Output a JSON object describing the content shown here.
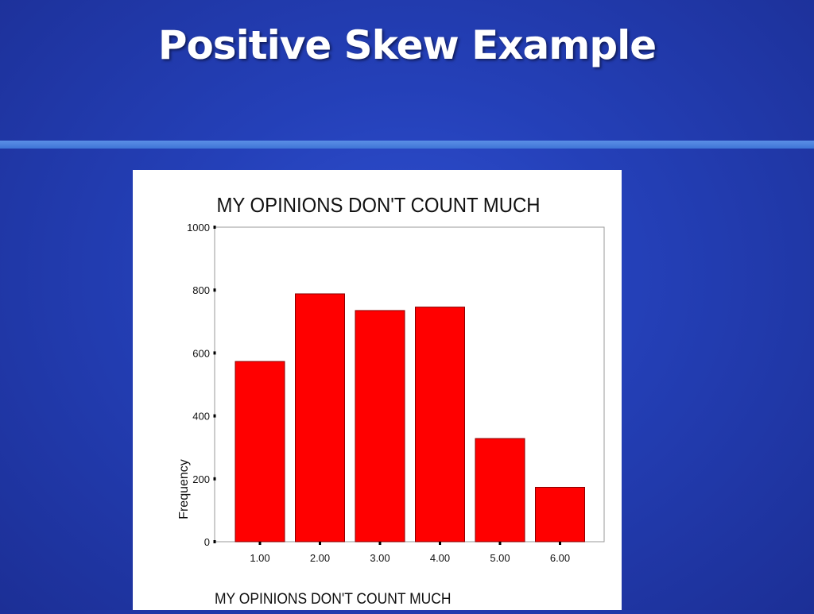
{
  "slide": {
    "title": "Positive Skew Example"
  },
  "colors": {
    "background": "#2440b8",
    "rule": "#4f86e0",
    "bar_fill": "#ff0000",
    "bar_stroke": "#8a0000"
  },
  "chart_data": {
    "type": "bar",
    "title": "MY OPINIONS DON'T COUNT MUCH",
    "xlabel": "MY OPINIONS DON'T COUNT MUCH",
    "ylabel": "Frequency",
    "categories": [
      "1.00",
      "2.00",
      "3.00",
      "4.00",
      "5.00",
      "6.00"
    ],
    "values": [
      573,
      788,
      735,
      746,
      328,
      173
    ],
    "ylim": [
      0,
      1000
    ],
    "yticks": [
      0,
      200,
      400,
      600,
      800,
      1000
    ],
    "grid": false,
    "legend": "none"
  }
}
